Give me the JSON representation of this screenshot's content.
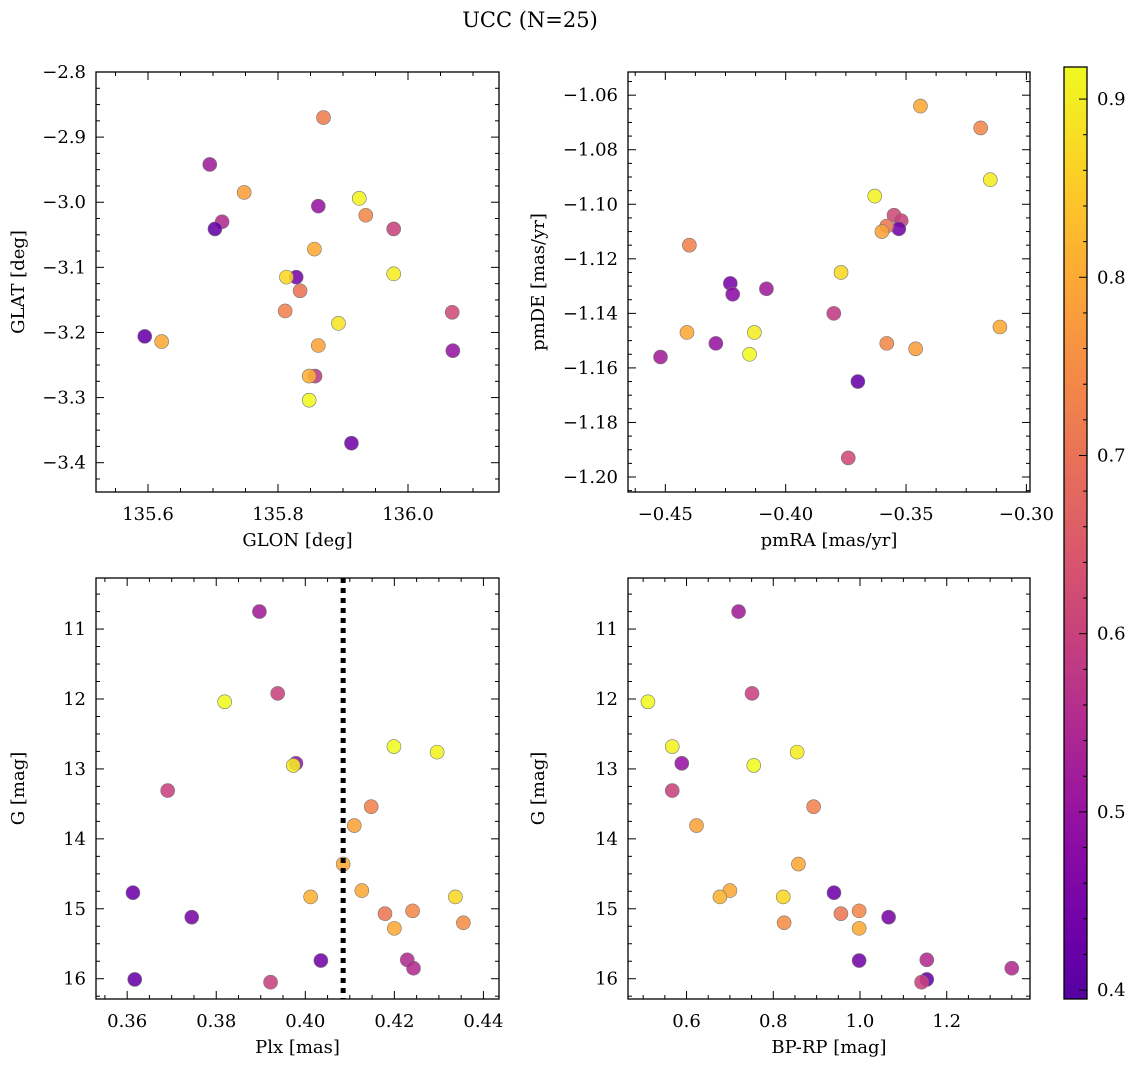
{
  "figure": {
    "title": "UCC (N=25)"
  },
  "colorbar": {
    "ticks": [
      0.4,
      0.5,
      0.6,
      0.7,
      0.8,
      0.9
    ],
    "tick_labels": [
      "0.4",
      "0.5",
      "0.6",
      "0.7",
      "0.8",
      "0.9"
    ],
    "range": [
      0.395,
      0.918
    ],
    "colormap": "plasma"
  },
  "chart_data": [
    {
      "type": "scatter",
      "title": "",
      "xlabel": "GLON [deg]",
      "ylabel": "GLAT [deg]",
      "xlim": [
        135.52,
        136.14
      ],
      "ylim": [
        -3.445,
        -2.8
      ],
      "y_inverted": false,
      "xticks": [
        135.6,
        135.8,
        136.0
      ],
      "xtick_labels": [
        "135.6",
        "135.8",
        "136.0"
      ],
      "yticks": [
        -2.8,
        -2.9,
        -3.0,
        -3.1,
        -3.2,
        -3.3,
        -3.4
      ],
      "ytick_labels": [
        "−2.8",
        "−2.9",
        "−3.0",
        "−3.1",
        "−3.2",
        "−3.3",
        "−3.4"
      ],
      "grid": false,
      "points": [
        {
          "x": 135.87,
          "y": -2.87,
          "c": 0.72
        },
        {
          "x": 135.695,
          "y": -2.942,
          "c": 0.52
        },
        {
          "x": 135.748,
          "y": -2.985,
          "c": 0.78
        },
        {
          "x": 135.925,
          "y": -2.994,
          "c": 0.91
        },
        {
          "x": 135.862,
          "y": -3.006,
          "c": 0.5
        },
        {
          "x": 135.935,
          "y": -3.02,
          "c": 0.74
        },
        {
          "x": 135.714,
          "y": -3.03,
          "c": 0.55
        },
        {
          "x": 135.703,
          "y": -3.041,
          "c": 0.42
        },
        {
          "x": 135.978,
          "y": -3.041,
          "c": 0.6
        },
        {
          "x": 135.856,
          "y": -3.072,
          "c": 0.8
        },
        {
          "x": 135.978,
          "y": -3.11,
          "c": 0.9
        },
        {
          "x": 135.828,
          "y": -3.115,
          "c": 0.45
        },
        {
          "x": 135.813,
          "y": -3.115,
          "c": 0.87
        },
        {
          "x": 135.834,
          "y": -3.136,
          "c": 0.7
        },
        {
          "x": 135.811,
          "y": -3.167,
          "c": 0.73
        },
        {
          "x": 136.068,
          "y": -3.169,
          "c": 0.62
        },
        {
          "x": 135.893,
          "y": -3.186,
          "c": 0.89
        },
        {
          "x": 135.595,
          "y": -3.206,
          "c": 0.42
        },
        {
          "x": 135.621,
          "y": -3.214,
          "c": 0.8
        },
        {
          "x": 135.862,
          "y": -3.22,
          "c": 0.79
        },
        {
          "x": 136.069,
          "y": -3.228,
          "c": 0.5
        },
        {
          "x": 135.857,
          "y": -3.267,
          "c": 0.58
        },
        {
          "x": 135.848,
          "y": -3.267,
          "c": 0.81
        },
        {
          "x": 135.848,
          "y": -3.304,
          "c": 0.92
        },
        {
          "x": 135.913,
          "y": -3.37,
          "c": 0.44
        }
      ]
    },
    {
      "type": "scatter",
      "title": "",
      "xlabel": "pmRA [mas/yr]",
      "ylabel": "pmDE [mas/yr]",
      "xlim": [
        -0.4655,
        -0.2985
      ],
      "ylim": [
        -1.2055,
        -1.0515
      ],
      "y_inverted": false,
      "xticks": [
        -0.45,
        -0.4,
        -0.35,
        -0.3
      ],
      "xtick_labels": [
        "−0.45",
        "−0.40",
        "−0.35",
        "−0.30"
      ],
      "yticks": [
        -1.06,
        -1.08,
        -1.1,
        -1.12,
        -1.14,
        -1.16,
        -1.18,
        -1.2
      ],
      "ytick_labels": [
        "−1.06",
        "−1.08",
        "−1.10",
        "−1.12",
        "−1.14",
        "−1.16",
        "−1.18",
        "−1.20"
      ],
      "grid": false,
      "points": [
        {
          "x": -0.344,
          "y": -1.064,
          "c": 0.8
        },
        {
          "x": -0.319,
          "y": -1.072,
          "c": 0.74
        },
        {
          "x": -0.315,
          "y": -1.091,
          "c": 0.9
        },
        {
          "x": -0.363,
          "y": -1.097,
          "c": 0.91
        },
        {
          "x": -0.355,
          "y": -1.104,
          "c": 0.62
        },
        {
          "x": -0.352,
          "y": -1.106,
          "c": 0.6
        },
        {
          "x": -0.353,
          "y": -1.109,
          "c": 0.44
        },
        {
          "x": -0.358,
          "y": -1.108,
          "c": 0.71
        },
        {
          "x": -0.36,
          "y": -1.11,
          "c": 0.79
        },
        {
          "x": -0.44,
          "y": -1.115,
          "c": 0.73
        },
        {
          "x": -0.377,
          "y": -1.125,
          "c": 0.87
        },
        {
          "x": -0.423,
          "y": -1.129,
          "c": 0.45
        },
        {
          "x": -0.422,
          "y": -1.133,
          "c": 0.48
        },
        {
          "x": -0.408,
          "y": -1.131,
          "c": 0.52
        },
        {
          "x": -0.38,
          "y": -1.14,
          "c": 0.58
        },
        {
          "x": -0.311,
          "y": -1.145,
          "c": 0.8
        },
        {
          "x": -0.441,
          "y": -1.147,
          "c": 0.8
        },
        {
          "x": -0.413,
          "y": -1.147,
          "c": 0.9
        },
        {
          "x": -0.429,
          "y": -1.151,
          "c": 0.5
        },
        {
          "x": -0.358,
          "y": -1.151,
          "c": 0.74
        },
        {
          "x": -0.346,
          "y": -1.153,
          "c": 0.78
        },
        {
          "x": -0.415,
          "y": -1.155,
          "c": 0.92
        },
        {
          "x": -0.452,
          "y": -1.156,
          "c": 0.52
        },
        {
          "x": -0.37,
          "y": -1.165,
          "c": 0.42
        },
        {
          "x": -0.374,
          "y": -1.193,
          "c": 0.62
        }
      ]
    },
    {
      "type": "scatter",
      "title": "",
      "xlabel": "Plx [mas]",
      "ylabel": "G [mag]",
      "xlim": [
        0.353,
        0.4435
      ],
      "ylim": [
        16.29,
        10.27
      ],
      "y_inverted": true,
      "xticks": [
        0.36,
        0.38,
        0.4,
        0.42,
        0.44
      ],
      "xtick_labels": [
        "0.36",
        "0.38",
        "0.40",
        "0.42",
        "0.44"
      ],
      "yticks": [
        11,
        12,
        13,
        14,
        15,
        16
      ],
      "ytick_labels": [
        "11",
        "12",
        "13",
        "14",
        "15",
        "16"
      ],
      "grid": false,
      "vline": {
        "x": 0.4085,
        "style": "dotted",
        "color": "#000000"
      },
      "points": [
        {
          "x": 0.3897,
          "y": 10.75,
          "c": 0.52
        },
        {
          "x": 0.3938,
          "y": 11.92,
          "c": 0.6
        },
        {
          "x": 0.3819,
          "y": 12.04,
          "c": 0.92
        },
        {
          "x": 0.4199,
          "y": 12.68,
          "c": 0.92
        },
        {
          "x": 0.4296,
          "y": 12.76,
          "c": 0.91
        },
        {
          "x": 0.3979,
          "y": 12.92,
          "c": 0.5
        },
        {
          "x": 0.3973,
          "y": 12.95,
          "c": 0.9
        },
        {
          "x": 0.3691,
          "y": 13.31,
          "c": 0.6
        },
        {
          "x": 0.4148,
          "y": 13.54,
          "c": 0.73
        },
        {
          "x": 0.411,
          "y": 13.81,
          "c": 0.79
        },
        {
          "x": 0.4085,
          "y": 14.36,
          "c": 0.8
        },
        {
          "x": 0.4127,
          "y": 14.74,
          "c": 0.8
        },
        {
          "x": 0.3613,
          "y": 14.77,
          "c": 0.43
        },
        {
          "x": 0.4012,
          "y": 14.83,
          "c": 0.81
        },
        {
          "x": 0.4337,
          "y": 14.83,
          "c": 0.87
        },
        {
          "x": 0.4241,
          "y": 15.03,
          "c": 0.74
        },
        {
          "x": 0.4179,
          "y": 15.07,
          "c": 0.71
        },
        {
          "x": 0.3745,
          "y": 15.12,
          "c": 0.45
        },
        {
          "x": 0.4355,
          "y": 15.2,
          "c": 0.75
        },
        {
          "x": 0.42,
          "y": 15.28,
          "c": 0.8
        },
        {
          "x": 0.4229,
          "y": 15.73,
          "c": 0.55
        },
        {
          "x": 0.4035,
          "y": 15.74,
          "c": 0.44
        },
        {
          "x": 0.4243,
          "y": 15.85,
          "c": 0.55
        },
        {
          "x": 0.3617,
          "y": 16.01,
          "c": 0.42
        },
        {
          "x": 0.3922,
          "y": 16.05,
          "c": 0.6
        }
      ]
    },
    {
      "type": "scatter",
      "title": "",
      "xlabel": "BP-RP [mag]",
      "ylabel": "G [mag]",
      "xlim": [
        0.465,
        1.392
      ],
      "ylim": [
        16.29,
        10.27
      ],
      "y_inverted": true,
      "xticks": [
        0.6,
        0.8,
        1.0,
        1.2
      ],
      "xtick_labels": [
        "0.6",
        "0.8",
        "1.0",
        "1.2"
      ],
      "yticks": [
        11,
        12,
        13,
        14,
        15,
        16
      ],
      "ytick_labels": [
        "11",
        "12",
        "13",
        "14",
        "15",
        "16"
      ],
      "grid": false,
      "points": [
        {
          "x": 0.72,
          "y": 10.75,
          "c": 0.52
        },
        {
          "x": 0.751,
          "y": 11.92,
          "c": 0.6
        },
        {
          "x": 0.511,
          "y": 12.04,
          "c": 0.92
        },
        {
          "x": 0.567,
          "y": 12.68,
          "c": 0.91
        },
        {
          "x": 0.855,
          "y": 12.76,
          "c": 0.9
        },
        {
          "x": 0.589,
          "y": 12.92,
          "c": 0.5
        },
        {
          "x": 0.755,
          "y": 12.95,
          "c": 0.92
        },
        {
          "x": 0.567,
          "y": 13.31,
          "c": 0.6
        },
        {
          "x": 0.893,
          "y": 13.54,
          "c": 0.73
        },
        {
          "x": 0.623,
          "y": 13.81,
          "c": 0.79
        },
        {
          "x": 0.858,
          "y": 14.36,
          "c": 0.8
        },
        {
          "x": 0.7,
          "y": 14.74,
          "c": 0.8
        },
        {
          "x": 0.94,
          "y": 14.77,
          "c": 0.43
        },
        {
          "x": 0.677,
          "y": 14.83,
          "c": 0.81
        },
        {
          "x": 0.823,
          "y": 14.83,
          "c": 0.87
        },
        {
          "x": 0.998,
          "y": 15.03,
          "c": 0.74
        },
        {
          "x": 0.956,
          "y": 15.07,
          "c": 0.71
        },
        {
          "x": 1.066,
          "y": 15.12,
          "c": 0.45
        },
        {
          "x": 0.825,
          "y": 15.2,
          "c": 0.75
        },
        {
          "x": 0.998,
          "y": 15.28,
          "c": 0.8
        },
        {
          "x": 1.154,
          "y": 15.73,
          "c": 0.55
        },
        {
          "x": 0.998,
          "y": 15.74,
          "c": 0.44
        },
        {
          "x": 1.35,
          "y": 15.85,
          "c": 0.55
        },
        {
          "x": 1.154,
          "y": 16.01,
          "c": 0.42
        },
        {
          "x": 1.142,
          "y": 16.05,
          "c": 0.6
        }
      ]
    }
  ]
}
